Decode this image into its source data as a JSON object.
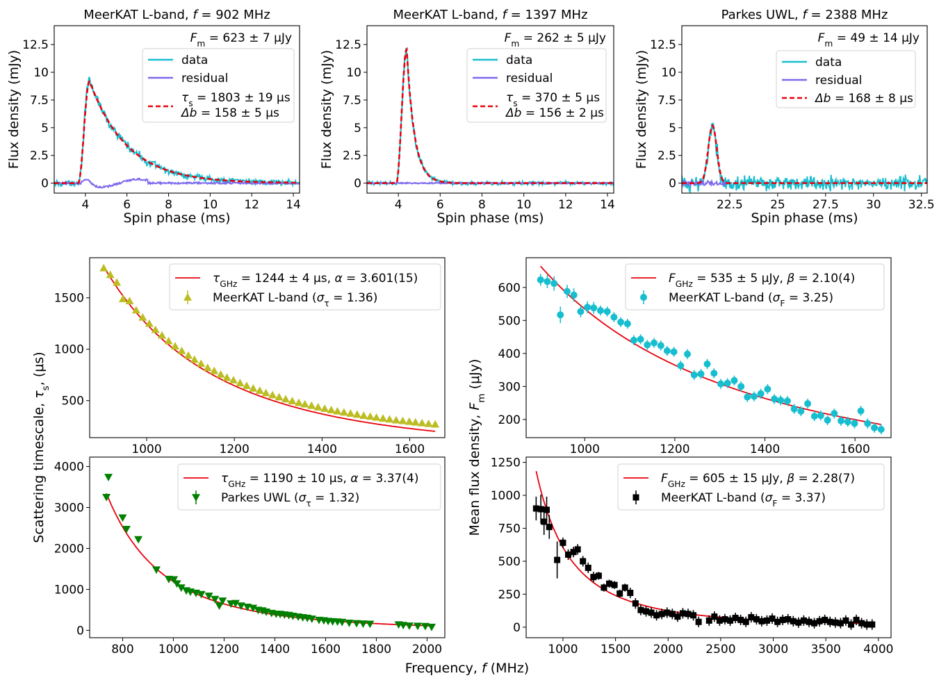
{
  "figure": {
    "shared_xlabel": "Frequency, f (MHz)",
    "shared_ylabel_left": "Scattering timescale, τs, (μs)",
    "shared_ylabel_right": "Mean flux density, Fm (μJy)"
  },
  "chart_data": [
    {
      "id": "profile_902",
      "type": "line",
      "title": "MeerKAT L-band, f = 902 MHz",
      "xlabel": "Spin phase (ms)",
      "ylabel": "Flux density (mJy)",
      "xlim": [
        2.5,
        14.3
      ],
      "ylim": [
        -0.9,
        14.2
      ],
      "xticks": [
        4,
        6,
        8,
        10,
        12,
        14
      ],
      "yticks": [
        0.0,
        2.5,
        5.0,
        7.5,
        10.0,
        12.5
      ],
      "annotation": "Fm = 623 ± 7 μJy",
      "model": {
        "kind": "scatter",
        "onset": 3.65,
        "rise": 0.2,
        "peak_at": 4.2,
        "peak": 9.2,
        "tau_ms": 1.803
      },
      "noise": 0.18,
      "series": [
        {
          "name": "data",
          "color": "#17becf"
        },
        {
          "name": "residual",
          "color": "#7b68ee"
        },
        {
          "name": "τs = 1803 ± 19 μs  Δb = 158 ± 5 μs",
          "color": "#e8000b",
          "dashed": true
        }
      ],
      "legend": [
        "data",
        "residual",
        "τs = 1803 ± 19 μs",
        "Δb = 158 ± 5 μs"
      ]
    },
    {
      "id": "profile_1397",
      "type": "line",
      "title": "MeerKAT L-band, f = 1397 MHz",
      "xlabel": "Spin phase (ms)",
      "ylabel": "Flux density (mJy)",
      "xlim": [
        2.5,
        14.3
      ],
      "ylim": [
        -0.9,
        14.2
      ],
      "xticks": [
        4,
        6,
        8,
        10,
        12,
        14
      ],
      "yticks": [
        0.0,
        2.5,
        5.0,
        7.5,
        10.0,
        12.5
      ],
      "annotation": "Fm = 262 ± 5 μJy",
      "model": {
        "kind": "scatter",
        "onset": 3.9,
        "rise": 0.17,
        "peak_at": 4.4,
        "peak": 12.1,
        "tau_ms": 0.37
      },
      "noise": 0.12,
      "series": [
        {
          "name": "data",
          "color": "#17becf"
        },
        {
          "name": "residual",
          "color": "#7b68ee"
        },
        {
          "name": "τs = 370 ± 5 μs  Δb = 156 ± 2 μs",
          "color": "#e8000b",
          "dashed": true
        }
      ],
      "legend": [
        "data",
        "residual",
        "τs = 370 ± 5 μs",
        "Δb = 156 ± 2 μs"
      ]
    },
    {
      "id": "profile_2388",
      "type": "line",
      "title": "Parkes UWL, f = 2388 MHz",
      "xlabel": "Spin phase (ms)",
      "ylabel": "Flux density (mJy)",
      "xlim": [
        20.0,
        32.8
      ],
      "ylim": [
        -0.9,
        14.2
      ],
      "xticks": [
        22.5,
        25.0,
        27.5,
        30.0,
        32.5
      ],
      "yticks": [
        0.0,
        2.5,
        5.0,
        7.5,
        10.0,
        12.5
      ],
      "annotation": "Fm = 49 ± 14 μJy",
      "model": {
        "kind": "gauss",
        "center": 21.6,
        "sigma": 0.22,
        "peak": 5.2
      },
      "noise": 0.45,
      "series": [
        {
          "name": "data",
          "color": "#17becf"
        },
        {
          "name": "residual",
          "color": "#7b68ee"
        },
        {
          "name": "Δb = 168 ± 8 μs",
          "color": "#e8000b",
          "dashed": true
        }
      ],
      "legend": [
        "data",
        "residual",
        "Δb = 168 ± 8 μs"
      ]
    },
    {
      "id": "tau_meerkat",
      "type": "scatter",
      "xlabel": "",
      "ylabel": "",
      "xlim": [
        870,
        1680
      ],
      "ylim": [
        140,
        1890
      ],
      "xticks": [
        1000,
        1200,
        1400,
        1600
      ],
      "yticks": [
        500,
        1000,
        1500
      ],
      "marker": "triangle-up",
      "marker_color": "#bcbd22",
      "fit": {
        "A": 1244,
        "exp": -3.601,
        "color": "#e8000b"
      },
      "x": [
        902,
        917,
        932,
        946,
        961,
        976,
        991,
        1006,
        1020,
        1035,
        1050,
        1065,
        1080,
        1095,
        1109,
        1124,
        1139,
        1154,
        1169,
        1183,
        1198,
        1213,
        1228,
        1243,
        1258,
        1272,
        1287,
        1302,
        1317,
        1332,
        1347,
        1361,
        1376,
        1391,
        1406,
        1421,
        1435,
        1450,
        1465,
        1480,
        1495,
        1510,
        1524,
        1539,
        1554,
        1569,
        1584,
        1599,
        1613,
        1628,
        1643,
        1658
      ],
      "y": [
        1790,
        1725,
        1650,
        1490,
        1470,
        1380,
        1310,
        1250,
        1190,
        1135,
        1080,
        1030,
        985,
        940,
        900,
        860,
        820,
        790,
        755,
        725,
        700,
        672,
        645,
        620,
        598,
        575,
        555,
        535,
        515,
        497,
        480,
        466,
        452,
        437,
        423,
        410,
        398,
        387,
        376,
        366,
        355,
        346,
        337,
        328,
        319,
        311,
        304,
        297,
        290,
        283,
        276,
        270
      ],
      "legend": [
        "τGHz = 1244 ± 4 μs, α = 3.601(15)",
        "MeerKAT L-band (στ = 1.36)"
      ]
    },
    {
      "id": "tau_parkes",
      "type": "scatter",
      "xlabel": "",
      "ylabel": "",
      "xlim": [
        670,
        2070
      ],
      "ylim": [
        -180,
        4230
      ],
      "xticks": [
        800,
        1000,
        1200,
        1400,
        1600,
        1800,
        2000
      ],
      "yticks": [
        0,
        1000,
        2000,
        3000,
        4000
      ],
      "marker": "triangle-down",
      "marker_color": "#008000",
      "fit": {
        "A": 1190,
        "exp": -3.37,
        "color": "#e8000b"
      },
      "x": [
        736,
        744,
        800,
        815,
        862,
        933,
        982,
        1002,
        1014,
        1031,
        1051,
        1067,
        1089,
        1110,
        1140,
        1164,
        1181,
        1194,
        1227,
        1245,
        1267,
        1292,
        1314,
        1334,
        1351,
        1366,
        1387,
        1405,
        1421,
        1438,
        1455,
        1471,
        1492,
        1510,
        1528,
        1546,
        1574,
        1593,
        1610,
        1628,
        1647,
        1665,
        1693,
        1722,
        1748,
        1775,
        1888,
        1906,
        1930,
        1963,
        1993,
        2018
      ],
      "y": [
        3250,
        3740,
        2750,
        2470,
        2220,
        1480,
        1250,
        1240,
        1140,
        1040,
        970,
        940,
        910,
        880,
        840,
        760,
        600,
        720,
        650,
        660,
        600,
        570,
        545,
        495,
        480,
        450,
        420,
        400,
        395,
        380,
        370,
        350,
        330,
        315,
        300,
        280,
        250,
        240,
        225,
        215,
        210,
        200,
        180,
        170,
        160,
        155,
        140,
        125,
        110,
        105,
        100,
        80
      ],
      "legend": [
        "τGHz = 1190 ± 10 μs, α = 3.37(4)",
        "Parkes UWL (στ = 1.32)"
      ]
    },
    {
      "id": "flux_meerkat",
      "type": "scatter",
      "xlabel": "",
      "ylabel": "",
      "xlim": [
        870,
        1680
      ],
      "ylim": [
        145,
        690
      ],
      "xticks": [
        1000,
        1200,
        1400,
        1600
      ],
      "yticks": [
        200,
        300,
        400,
        500,
        600
      ],
      "marker": "circle",
      "marker_color": "#17becf",
      "fit": {
        "A": 535,
        "exp": -2.1,
        "color": "#e8000b"
      },
      "x": [
        902,
        917,
        932,
        946,
        961,
        976,
        991,
        1006,
        1020,
        1035,
        1050,
        1065,
        1080,
        1095,
        1109,
        1124,
        1139,
        1154,
        1169,
        1183,
        1198,
        1213,
        1228,
        1243,
        1258,
        1272,
        1287,
        1302,
        1317,
        1332,
        1347,
        1361,
        1376,
        1391,
        1406,
        1421,
        1435,
        1450,
        1465,
        1480,
        1495,
        1510,
        1524,
        1539,
        1554,
        1569,
        1584,
        1599,
        1613,
        1628,
        1643,
        1658
      ],
      "y": [
        623,
        618,
        612,
        517,
        588,
        577,
        527,
        540,
        538,
        530,
        527,
        510,
        495,
        490,
        440,
        443,
        426,
        432,
        424,
        408,
        405,
        363,
        398,
        335,
        338,
        368,
        340,
        308,
        310,
        318,
        300,
        268,
        270,
        278,
        292,
        262,
        258,
        256,
        232,
        225,
        248,
        210,
        212,
        198,
        218,
        196,
        193,
        188,
        226,
        188,
        175,
        170
      ],
      "yerr": [
        18,
        20,
        22,
        25,
        20,
        20,
        18,
        18,
        18,
        15,
        15,
        15,
        15,
        15,
        15,
        15,
        15,
        15,
        15,
        15,
        15,
        15,
        15,
        15,
        15,
        15,
        15,
        15,
        15,
        15,
        15,
        15,
        15,
        15,
        15,
        15,
        15,
        15,
        15,
        15,
        15,
        15,
        15,
        15,
        15,
        15,
        15,
        15,
        15,
        15,
        15,
        15
      ],
      "legend": [
        "FGHz = 535 ± 5 μJy, β = 2.10(4)",
        "MeerKAT L-band (σF = 3.25)"
      ]
    },
    {
      "id": "flux_wide",
      "type": "scatter",
      "xlabel": "",
      "ylabel": "",
      "xlim": [
        650,
        4120
      ],
      "ylim": [
        -80,
        1290
      ],
      "xticks": [
        1000,
        1500,
        2000,
        2500,
        3000,
        3500,
        4000
      ],
      "yticks": [
        0,
        250,
        500,
        750,
        1000,
        1250
      ],
      "marker": "square",
      "marker_color": "#000000",
      "fit": {
        "A": 605,
        "exp": -2.28,
        "color": "#e8000b"
      },
      "x": [
        745,
        790,
        820,
        845,
        870,
        945,
        1000,
        1050,
        1100,
        1140,
        1190,
        1240,
        1290,
        1340,
        1390,
        1440,
        1490,
        1540,
        1590,
        1640,
        1690,
        1740,
        1790,
        1840,
        1890,
        1940,
        1990,
        2040,
        2090,
        2140,
        2190,
        2240,
        2290,
        2390,
        2440,
        2490,
        2540,
        2590,
        2640,
        2690,
        2740,
        2790,
        2840,
        2890,
        2940,
        2990,
        3040,
        3090,
        3140,
        3190,
        3240,
        3290,
        3340,
        3390,
        3440,
        3490,
        3540,
        3590,
        3640,
        3690,
        3740,
        3790,
        3840,
        3890,
        3940
      ],
      "y": [
        900,
        895,
        800,
        890,
        760,
        510,
        640,
        550,
        570,
        590,
        500,
        450,
        380,
        390,
        300,
        330,
        320,
        255,
        300,
        260,
        180,
        130,
        120,
        110,
        90,
        100,
        110,
        100,
        80,
        105,
        100,
        90,
        40,
        50,
        80,
        50,
        60,
        50,
        70,
        55,
        40,
        75,
        60,
        45,
        50,
        65,
        40,
        55,
        60,
        45,
        35,
        50,
        40,
        30,
        45,
        55,
        40,
        35,
        30,
        50,
        20,
        55,
        30,
        20,
        20
      ],
      "yerr": [
        90,
        110,
        100,
        100,
        90,
        140,
        40,
        40,
        40,
        40,
        40,
        40,
        40,
        30,
        30,
        30,
        30,
        30,
        30,
        40,
        40,
        40,
        40,
        40,
        40,
        40,
        40,
        40,
        40,
        40,
        40,
        40,
        40,
        40,
        40,
        40,
        40,
        40,
        40,
        40,
        40,
        40,
        40,
        40,
        40,
        40,
        40,
        40,
        40,
        40,
        40,
        40,
        40,
        40,
        40,
        40,
        40,
        40,
        40,
        40,
        40,
        40,
        40,
        40,
        40
      ],
      "legend": [
        "FGHz = 605 ± 15 μJy, β = 2.28(7)",
        "MeerKAT L-band (σF = 3.37)"
      ]
    }
  ]
}
